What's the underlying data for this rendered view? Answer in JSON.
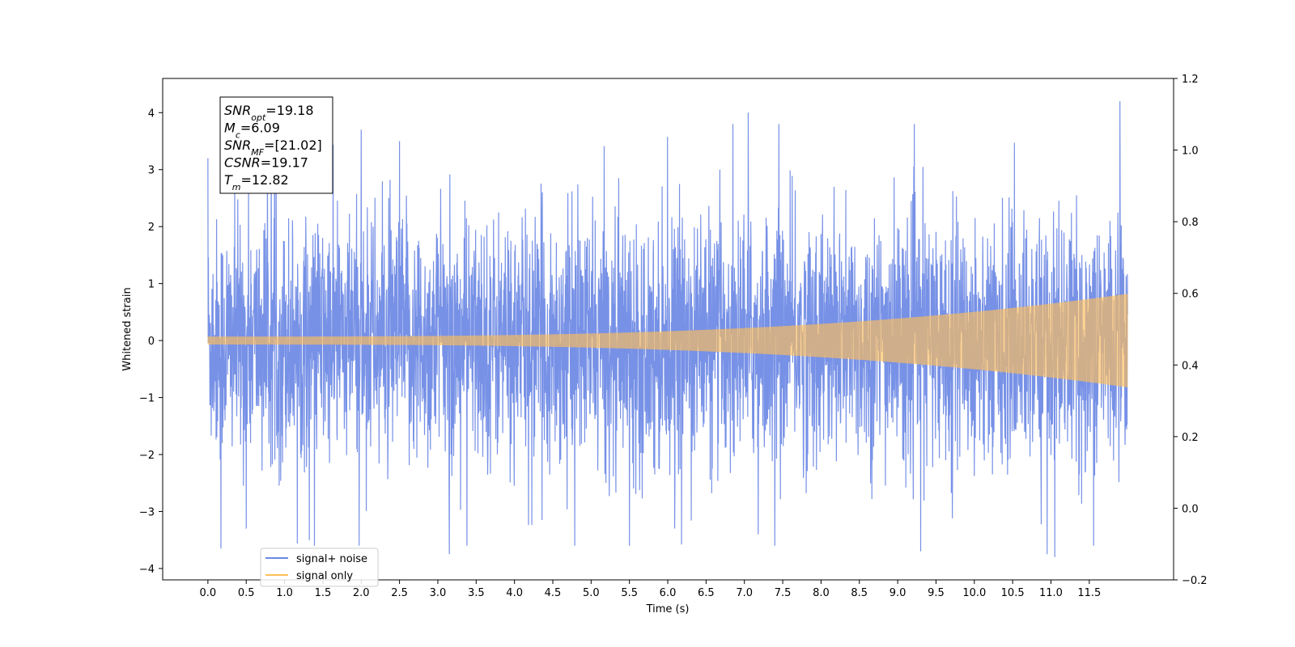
{
  "chart_data": {
    "type": "line",
    "xlabel": "Time (s)",
    "ylabel": "Whitened strain",
    "xlim": [
      -0.59,
      12.6
    ],
    "ylim": [
      -4.2,
      4.6
    ],
    "y2lim": [
      -0.2,
      1.2
    ],
    "xticks": [
      0.0,
      0.5,
      1.0,
      1.5,
      2.0,
      2.5,
      3.0,
      3.5,
      4.0,
      4.5,
      5.0,
      5.5,
      6.0,
      6.5,
      7.0,
      7.5,
      8.0,
      8.5,
      9.0,
      9.5,
      10.0,
      10.5,
      11.0,
      11.5
    ],
    "xtick_labels": [
      "0.0",
      "0.5",
      "1.0",
      "1.5",
      "2.0",
      "2.5",
      "3.0",
      "3.5",
      "4.0",
      "4.5",
      "5.0",
      "5.5",
      "6.0",
      "6.5",
      "7.0",
      "7.5",
      "8.0",
      "8.5",
      "9.0",
      "9.5",
      "10.0",
      "10.5",
      "11.0",
      "11.5"
    ],
    "yticks": [
      -4,
      -3,
      -2,
      -1,
      0,
      1,
      2,
      3,
      4
    ],
    "ytick_labels": [
      "−4",
      "−3",
      "−2",
      "−1",
      "0",
      "1",
      "2",
      "3",
      "4"
    ],
    "y2ticks": [
      -0.2,
      0.0,
      0.2,
      0.4,
      0.6,
      0.8,
      1.0,
      1.2
    ],
    "y2tick_labels": [
      "−0.2",
      "0.0",
      "0.2",
      "0.4",
      "0.6",
      "0.8",
      "1.0",
      "1.2"
    ],
    "grid": false,
    "legend_position": "lower-left",
    "series": [
      {
        "name": "signal+ noise",
        "color": "#6b88e4",
        "kind": "noise",
        "x_range": [
          0.0,
          12.0
        ],
        "band_max": 4.2,
        "band_min": -3.8,
        "peaks": [
          {
            "x": 0.0,
            "y": 3.2
          },
          {
            "x": 0.17,
            "y": -3.65
          },
          {
            "x": 0.5,
            "y": -3.3
          },
          {
            "x": 2.0,
            "y": 3.7
          },
          {
            "x": 2.5,
            "y": 3.5
          },
          {
            "x": 3.15,
            "y": -3.75
          },
          {
            "x": 5.5,
            "y": -3.6
          },
          {
            "x": 7.05,
            "y": 4.0
          },
          {
            "x": 7.45,
            "y": 3.8
          },
          {
            "x": 9.3,
            "y": -3.7
          },
          {
            "x": 10.95,
            "y": -3.75
          },
          {
            "x": 11.05,
            "y": -3.8
          },
          {
            "x": 11.9,
            "y": 4.2
          }
        ]
      },
      {
        "name": "signal only",
        "color": "#ffbf5a",
        "kind": "chirp",
        "x_range": [
          0.0,
          12.0
        ],
        "amplitude_start": 0.07,
        "amplitude_end": 0.82
      }
    ],
    "annotation": {
      "lines": [
        {
          "var": "SNR",
          "sub": "opt",
          "value": "=19.18"
        },
        {
          "var": "M",
          "sub": "c",
          "value": "=6.09"
        },
        {
          "var": "SNR",
          "sub": "MF",
          "value": "=[21.02]"
        },
        {
          "var": "CSNR",
          "sub": "",
          "value": "=19.17"
        },
        {
          "var": "T",
          "sub": "m",
          "value": "=12.82"
        }
      ]
    }
  }
}
